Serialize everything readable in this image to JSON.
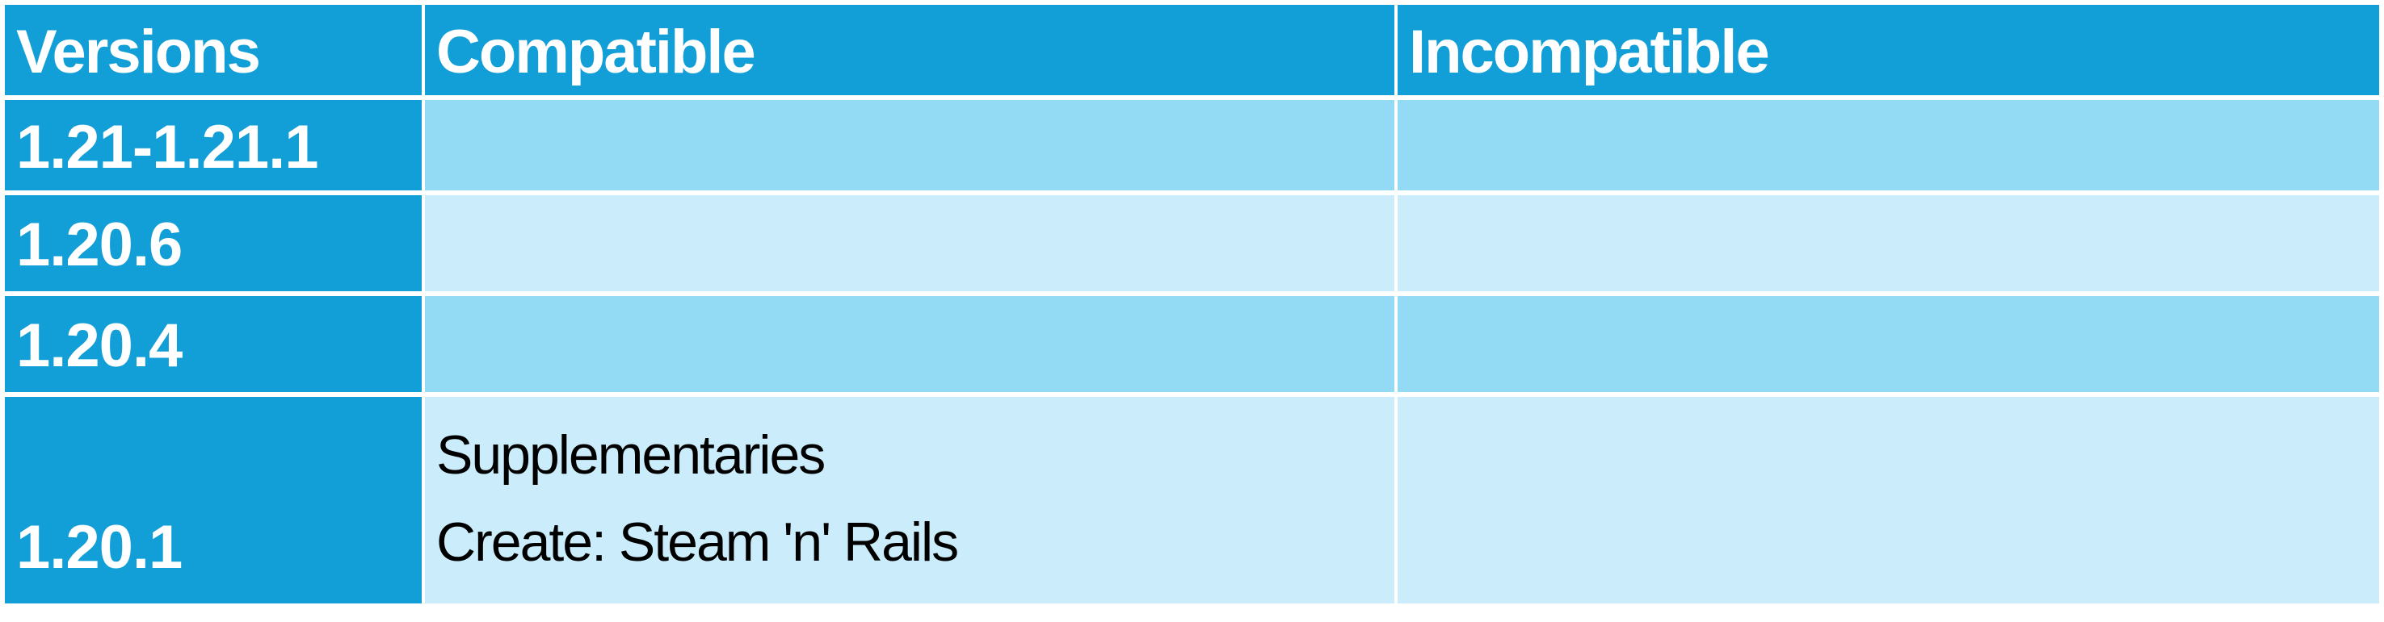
{
  "table": {
    "headers": [
      "Versions",
      "Compatible",
      "Incompatible"
    ],
    "rows": [
      {
        "version": "1.21-1.21.1",
        "compatible": [],
        "incompatible": []
      },
      {
        "version": "1.20.6",
        "compatible": [],
        "incompatible": []
      },
      {
        "version": "1.20.4",
        "compatible": [],
        "incompatible": []
      },
      {
        "version": "1.20.1",
        "compatible": [
          "Supplementaries",
          "Create: Steam 'n' Rails"
        ],
        "incompatible": []
      }
    ]
  },
  "colors": {
    "header_bg": "#129ed6",
    "header_text": "#ffffff",
    "row_dark": "#93daf5",
    "row_light": "#cbedfb",
    "body_text": "#000000"
  }
}
